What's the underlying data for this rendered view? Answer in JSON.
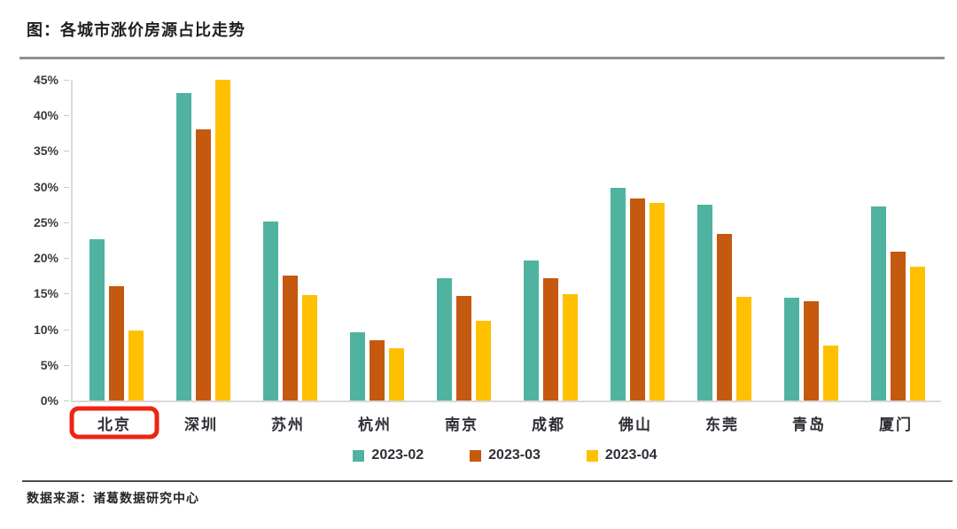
{
  "page": {
    "title": "图：各城市涨价房源占比走势",
    "source": "数据来源：诸葛数据研究中心"
  },
  "colors": {
    "series_teal": "#4fb3a0",
    "series_brown": "#c5590f",
    "series_yellow": "#ffc000",
    "axis_line": "#d9d9d9",
    "highlight_box": "#ee2413",
    "title_text": "#1f1f1f",
    "label_text": "#2e2e36"
  },
  "chart_data": {
    "type": "bar",
    "title": "图：各城市涨价房源占比走势",
    "xlabel": "",
    "ylabel": "",
    "ylim": [
      0,
      45
    ],
    "y_tick_step": 5,
    "y_tick_labels": [
      "0%",
      "5%",
      "10%",
      "15%",
      "20%",
      "25%",
      "30%",
      "35%",
      "40%",
      "45%"
    ],
    "grid": false,
    "legend_position": "bottom",
    "highlighted_category": "北京",
    "categories": [
      "北京",
      "深圳",
      "苏州",
      "杭州",
      "南京",
      "成都",
      "佛山",
      "东莞",
      "青岛",
      "厦门"
    ],
    "series": [
      {
        "name": "2023-02",
        "color": "#4fb3a0",
        "values": [
          22.6,
          43.1,
          25.1,
          9.6,
          17.2,
          19.7,
          29.9,
          27.5,
          14.4,
          27.2
        ]
      },
      {
        "name": "2023-03",
        "color": "#c5590f",
        "values": [
          16.1,
          38.1,
          17.5,
          8.5,
          14.7,
          17.2,
          28.4,
          23.4,
          13.9,
          20.9
        ]
      },
      {
        "name": "2023-04",
        "color": "#ffc000",
        "values": [
          9.8,
          45.0,
          14.8,
          7.4,
          11.2,
          14.9,
          27.7,
          14.6,
          7.7,
          18.8
        ]
      }
    ]
  }
}
